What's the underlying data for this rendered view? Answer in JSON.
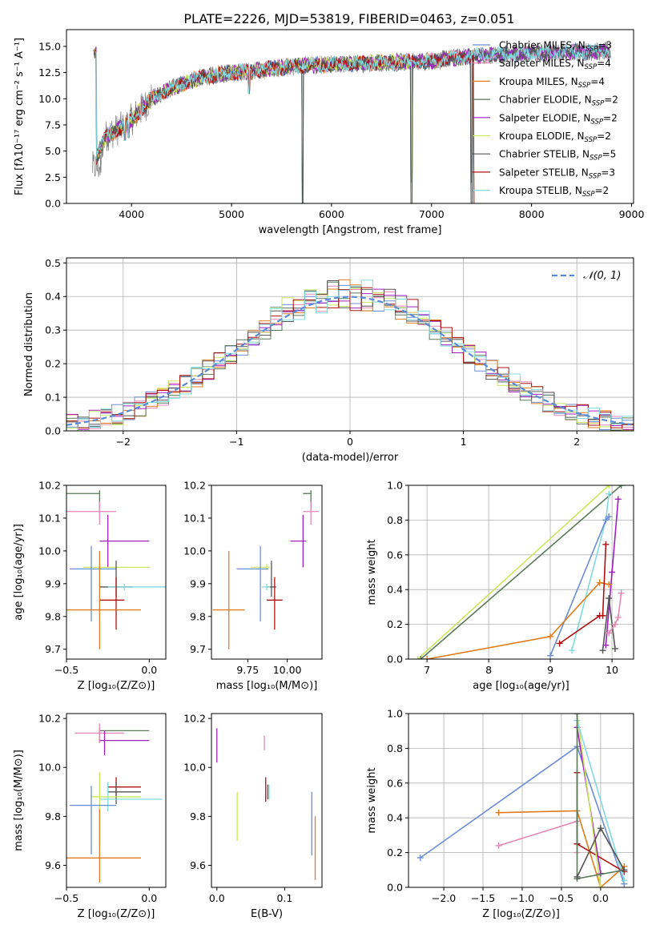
{
  "figure": {
    "title": "PLATE=2226, MJD=53819, FIBERID=0463, z=0.051"
  },
  "colors": {
    "chabrier_miles": "#6b8dd6",
    "salpeter_miles": "#e687b4",
    "kroupa_miles": "#e07b1c",
    "chabrier_elodie": "#5a7a5a",
    "salpeter_elodie": "#a020c0",
    "kroupa_elodie": "#c8e85a",
    "chabrier_stelib": "#555555",
    "salpeter_stelib": "#b01010",
    "kroupa_stelib": "#7fdbe0"
  },
  "chart_data": [
    {
      "id": "spectrum",
      "type": "line",
      "xlabel": "wavelength [Angstrom, rest frame]",
      "ylabel": "Flux [fλ10⁻¹⁷ erg cm⁻² s⁻¹ A⁻¹]",
      "xlim": [
        3350,
        9020
      ],
      "ylim": [
        0,
        16.6
      ],
      "xticks": [
        "4000",
        "5000",
        "6000",
        "7000",
        "8000",
        "9000"
      ],
      "yticks": [
        "0.0",
        "2.5",
        "5.0",
        "7.5",
        "10.0",
        "12.5",
        "15.0"
      ],
      "legend_position": "top-right",
      "legend": [
        {
          "label": "Chabrier MILES, N",
          "sub": "SSP",
          "suffix": "=3",
          "color": "#6b8dd6"
        },
        {
          "label": "Salpeter MILES, N",
          "sub": "SSP",
          "suffix": "=4",
          "color": "#e687b4"
        },
        {
          "label": "Kroupa MILES, N",
          "sub": "SSP",
          "suffix": "=4",
          "color": "#e07b1c"
        },
        {
          "label": "Chabrier ELODIE, N",
          "sub": "SSP",
          "suffix": "=2",
          "color": "#5a7a5a"
        },
        {
          "label": "Salpeter ELODIE, N",
          "sub": "SSP",
          "suffix": "=2",
          "color": "#a020c0"
        },
        {
          "label": "Kroupa ELODIE, N",
          "sub": "SSP",
          "suffix": "=2",
          "color": "#c8e85a"
        },
        {
          "label": "Chabrier STELIB, N",
          "sub": "SSP",
          "suffix": "=5",
          "color": "#555555"
        },
        {
          "label": "Salpeter STELIB, N",
          "sub": "SSP",
          "suffix": "=3",
          "color": "#b01010"
        },
        {
          "label": "Kroupa STELIB, N",
          "sub": "SSP",
          "suffix": "=2",
          "color": "#7fdbe0"
        }
      ],
      "continuum": [
        [
          3650,
          4.5
        ],
        [
          3750,
          6.5
        ],
        [
          3850,
          7.0
        ],
        [
          3950,
          7.5
        ],
        [
          4050,
          8.5
        ],
        [
          4200,
          10.0
        ],
        [
          4400,
          11.0
        ],
        [
          4600,
          11.8
        ],
        [
          4800,
          12.2
        ],
        [
          5000,
          12.5
        ],
        [
          5200,
          12.6
        ],
        [
          5500,
          13.0
        ],
        [
          5800,
          13.2
        ],
        [
          6100,
          13.3
        ],
        [
          6400,
          13.4
        ],
        [
          6700,
          13.5
        ],
        [
          7000,
          13.6
        ],
        [
          7300,
          14.0
        ],
        [
          7600,
          14.2
        ],
        [
          7900,
          14.3
        ],
        [
          8200,
          14.4
        ],
        [
          8500,
          14.5
        ],
        [
          8800,
          14.5
        ]
      ],
      "drops": [
        [
          3934,
          4.5
        ],
        [
          3969,
          4.8
        ],
        [
          4102,
          8.8
        ],
        [
          4300,
          9.0
        ],
        [
          4861,
          10.3
        ],
        [
          5175,
          9.0
        ],
        [
          5711,
          0
        ],
        [
          5893,
          11.0
        ],
        [
          6563,
          11.8
        ],
        [
          6800,
          0
        ],
        [
          7400,
          0
        ]
      ]
    },
    {
      "id": "residuals",
      "type": "histogram",
      "xlabel": "(data-model)/error",
      "ylabel": "Normed distribution",
      "xlim": [
        -2.5,
        2.5
      ],
      "ylim": [
        0,
        0.515
      ],
      "xticks": [
        "−2",
        "−1",
        "0",
        "1",
        "2"
      ],
      "yticks": [
        "0.0",
        "0.1",
        "0.2",
        "0.3",
        "0.4",
        "0.5"
      ],
      "grid": true,
      "reference_label": "𝒩(0, 1)",
      "reference_color": "#5b8bd8",
      "legend_position": "top-right"
    },
    {
      "id": "age_vs_Z",
      "type": "errorbar",
      "xlabel": "Z [log₁₀(Z/Z⊙)]",
      "ylabel": "age  [log₁₀(age/yr)]",
      "xlim": [
        -0.5,
        0.1
      ],
      "ylim": [
        9.67,
        10.2
      ],
      "xticks": [
        "−0.5",
        "0.0"
      ],
      "yticks": [
        "9.7",
        "9.8",
        "9.9",
        "10.0",
        "10.1",
        "10.2"
      ],
      "points": [
        {
          "x": -0.3,
          "y": 10.175,
          "xerr": [
            0.3,
            0.0
          ],
          "yerr": [
            0.05,
            0.01
          ],
          "color": "#5a7a5a"
        },
        {
          "x": -0.3,
          "y": 10.12,
          "xerr": [
            0.2,
            0.1
          ],
          "yerr": [
            0.04,
            0.03
          ],
          "color": "#e687b4"
        },
        {
          "x": -0.25,
          "y": 10.03,
          "xerr": [
            0.05,
            0.25
          ],
          "yerr": [
            0.08,
            0.08
          ],
          "color": "#a020c0"
        },
        {
          "x": -0.3,
          "y": 9.95,
          "xerr": [
            0.1,
            0.3
          ],
          "yerr": [
            0.01,
            0.01
          ],
          "color": "#c8e85a"
        },
        {
          "x": -0.35,
          "y": 9.945,
          "xerr": [
            0.13,
            0.15
          ],
          "yerr": [
            0.16,
            0.07
          ],
          "color": "#6b8dd6"
        },
        {
          "x": -0.2,
          "y": 9.89,
          "xerr": [
            0.1,
            0.1
          ],
          "yerr": [
            0.03,
            0.08
          ],
          "color": "#555555"
        },
        {
          "x": -0.15,
          "y": 9.89,
          "xerr": [
            0.1,
            0.27
          ],
          "yerr": [
            0.01,
            0.01
          ],
          "color": "#7fdbe0"
        },
        {
          "x": -0.2,
          "y": 9.85,
          "xerr": [
            0.1,
            0.05
          ],
          "yerr": [
            0.09,
            0.07
          ],
          "color": "#b01010"
        },
        {
          "x": -0.3,
          "y": 9.82,
          "xerr": [
            0.2,
            0.25
          ],
          "yerr": [
            0.12,
            0.18
          ],
          "color": "#e07b1c"
        }
      ]
    },
    {
      "id": "age_vs_mass",
      "type": "errorbar",
      "xlabel": "mass [log₁₀(M/M⊙)]",
      "ylabel": "",
      "xlim": [
        9.52,
        10.22
      ],
      "ylim": [
        9.67,
        10.2
      ],
      "xticks": [
        "9.75",
        "10.00"
      ],
      "yticks": [
        "9.7",
        "9.8",
        "9.9",
        "10.0",
        "10.1",
        "10.2"
      ],
      "points": [
        {
          "x": 10.15,
          "y": 10.175,
          "xerr": [
            0.05,
            0.0
          ],
          "yerr": [
            0.05,
            0.01
          ],
          "color": "#5a7a5a"
        },
        {
          "x": 10.15,
          "y": 10.12,
          "xerr": [
            0.05,
            0.05
          ],
          "yerr": [
            0.04,
            0.03
          ],
          "color": "#e687b4"
        },
        {
          "x": 10.1,
          "y": 10.03,
          "xerr": [
            0.08,
            0.02
          ],
          "yerr": [
            0.08,
            0.08
          ],
          "color": "#a020c0"
        },
        {
          "x": 9.87,
          "y": 9.95,
          "xerr": [
            0.1,
            0.02
          ],
          "yerr": [
            0.01,
            0.01
          ],
          "color": "#c8e85a"
        },
        {
          "x": 9.83,
          "y": 9.945,
          "xerr": [
            0.15,
            0.05
          ],
          "yerr": [
            0.16,
            0.07
          ],
          "color": "#6b8dd6"
        },
        {
          "x": 9.9,
          "y": 9.89,
          "xerr": [
            0.03,
            0.03
          ],
          "yerr": [
            0.03,
            0.08
          ],
          "color": "#555555"
        },
        {
          "x": 9.87,
          "y": 9.89,
          "xerr": [
            0.03,
            0.02
          ],
          "yerr": [
            0.01,
            0.01
          ],
          "color": "#7fdbe0"
        },
        {
          "x": 9.92,
          "y": 9.85,
          "xerr": [
            0.05,
            0.05
          ],
          "yerr": [
            0.09,
            0.07
          ],
          "color": "#b01010"
        },
        {
          "x": 9.63,
          "y": 9.82,
          "xerr": [
            0.1,
            0.1
          ],
          "yerr": [
            0.12,
            0.18
          ],
          "color": "#e07b1c"
        }
      ]
    },
    {
      "id": "weight_vs_age",
      "type": "line",
      "xlabel": "age  [log₁₀(age/yr)]",
      "ylabel": "mass weight",
      "xlim": [
        6.7,
        10.35
      ],
      "ylim": [
        0,
        1
      ],
      "xticks": [
        "7",
        "8",
        "9",
        "10"
      ],
      "yticks": [
        "0.0",
        "0.2",
        "0.4",
        "0.6",
        "0.8",
        "1.0"
      ],
      "grid": true,
      "series": [
        {
          "color": "#c8e85a",
          "x": [
            6.85,
            9.95
          ],
          "y": [
            0.0,
            1.0
          ]
        },
        {
          "color": "#5a7a5a",
          "x": [
            6.9,
            10.15
          ],
          "y": [
            0.0,
            1.0
          ]
        },
        {
          "color": "#7fdbe0",
          "x": [
            9.35,
            9.9,
            9.95
          ],
          "y": [
            0.05,
            0.8,
            0.95
          ]
        },
        {
          "color": "#6b8dd6",
          "x": [
            9.0,
            9.9,
            9.95
          ],
          "y": [
            0.02,
            0.8,
            0.82
          ]
        },
        {
          "color": "#a020c0",
          "x": [
            9.9,
            10.0,
            10.1
          ],
          "y": [
            0.08,
            0.5,
            0.92
          ]
        },
        {
          "color": "#e07b1c",
          "x": [
            7.0,
            9.0,
            9.8,
            9.95
          ],
          "y": [
            0.0,
            0.13,
            0.44,
            0.43
          ]
        },
        {
          "color": "#b01010",
          "x": [
            9.15,
            9.8,
            9.85,
            9.9
          ],
          "y": [
            0.09,
            0.25,
            0.25,
            0.66
          ]
        },
        {
          "color": "#555555",
          "x": [
            9.85,
            9.95,
            10.05
          ],
          "y": [
            0.05,
            0.35,
            0.06
          ]
        },
        {
          "color": "#e687b4",
          "x": [
            9.95,
            10.05,
            10.1,
            10.15
          ],
          "y": [
            0.15,
            0.2,
            0.24,
            0.38
          ]
        }
      ]
    },
    {
      "id": "mass_vs_Z",
      "type": "errorbar",
      "xlabel": "Z [log₁₀(Z/Z⊙)]",
      "ylabel": "mass [log₁₀(M/M⊙)]",
      "xlim": [
        -0.5,
        0.1
      ],
      "ylim": [
        9.51,
        10.22
      ],
      "xticks": [
        "−0.5",
        "0.0"
      ],
      "yticks": [
        "9.6",
        "9.8",
        "10.0",
        "10.2"
      ],
      "points": [
        {
          "x": -0.3,
          "y": 10.15,
          "xerr": [
            0.0,
            0.3
          ],
          "yerr": [
            0.05,
            0.01
          ],
          "color": "#5a7a5a"
        },
        {
          "x": -0.3,
          "y": 10.14,
          "xerr": [
            0.15,
            0.15
          ],
          "yerr": [
            0.04,
            0.04
          ],
          "color": "#e687b4"
        },
        {
          "x": -0.27,
          "y": 10.11,
          "xerr": [
            0.03,
            0.27
          ],
          "yerr": [
            0.06,
            0.04
          ],
          "color": "#a020c0"
        },
        {
          "x": -0.2,
          "y": 9.92,
          "xerr": [
            0.05,
            0.15
          ],
          "yerr": [
            0.05,
            0.04
          ],
          "color": "#b01010"
        },
        {
          "x": -0.2,
          "y": 9.9,
          "xerr": [
            0.05,
            0.15
          ],
          "yerr": [
            0.05,
            0.04
          ],
          "color": "#555555"
        },
        {
          "x": -0.25,
          "y": 9.87,
          "xerr": [
            0.05,
            0.33
          ],
          "yerr": [
            0.05,
            0.07
          ],
          "color": "#7fdbe0"
        },
        {
          "x": -0.3,
          "y": 9.88,
          "xerr": [
            0.05,
            0.25
          ],
          "yerr": [
            0.2,
            0.1
          ],
          "color": "#c8e85a"
        },
        {
          "x": -0.35,
          "y": 9.845,
          "xerr": [
            0.13,
            0.15
          ],
          "yerr": [
            0.2,
            0.08
          ],
          "color": "#6b8dd6"
        },
        {
          "x": -0.3,
          "y": 9.63,
          "xerr": [
            0.2,
            0.25
          ],
          "yerr": [
            0.1,
            0.2
          ],
          "color": "#e07b1c"
        }
      ]
    },
    {
      "id": "mass_vs_ebv",
      "type": "errorbar",
      "xlabel": "E(B-V)",
      "ylabel": "",
      "xlim": [
        -0.008,
        0.155
      ],
      "ylim": [
        9.51,
        10.22
      ],
      "xticks": [
        "0.0",
        "0.1"
      ],
      "yticks": [
        "9.6",
        "9.8",
        "10.0",
        "10.2"
      ],
      "points": [
        {
          "x": 0.0,
          "y": 10.09,
          "xerr": [
            0,
            0
          ],
          "yerr": [
            0.07,
            0.07
          ],
          "color": "#a020c0"
        },
        {
          "x": 0.07,
          "y": 10.1,
          "xerr": [
            0,
            0
          ],
          "yerr": [
            0.03,
            0.03
          ],
          "color": "#e687b4"
        },
        {
          "x": 0.03,
          "y": 9.8,
          "xerr": [
            0,
            0
          ],
          "yerr": [
            0.1,
            0.1
          ],
          "color": "#c8e85a"
        },
        {
          "x": 0.072,
          "y": 9.91,
          "xerr": [
            0,
            0
          ],
          "yerr": [
            0.05,
            0.05
          ],
          "color": "#b01010"
        },
        {
          "x": 0.075,
          "y": 9.9,
          "xerr": [
            0,
            0
          ],
          "yerr": [
            0.03,
            0.03
          ],
          "color": "#555555"
        },
        {
          "x": 0.077,
          "y": 9.9,
          "xerr": [
            0,
            0
          ],
          "yerr": [
            0.03,
            0.03
          ],
          "color": "#7fdbe0"
        },
        {
          "x": 0.14,
          "y": 9.77,
          "xerr": [
            0,
            0
          ],
          "yerr": [
            0.13,
            0.13
          ],
          "color": "#6b8dd6"
        },
        {
          "x": 0.145,
          "y": 9.67,
          "xerr": [
            0,
            0
          ],
          "yerr": [
            0.13,
            0.13
          ],
          "color": "#e07b1c"
        }
      ]
    },
    {
      "id": "weight_vs_Z",
      "type": "line",
      "xlabel": "Z [log₁₀(Z/Z⊙)]",
      "ylabel": "mass weight",
      "xlim": [
        -2.45,
        0.42
      ],
      "ylim": [
        0,
        1
      ],
      "xticks": [
        "−2.0",
        "−1.5",
        "−1.0",
        "−0.5",
        "0.0"
      ],
      "yticks": [
        "0.0",
        "0.2",
        "0.4",
        "0.6",
        "0.8",
        "1.0"
      ],
      "grid": true,
      "series": [
        {
          "color": "#6b8dd6",
          "x": [
            -2.3,
            -0.3,
            0.3
          ],
          "y": [
            0.17,
            0.81,
            0.02
          ]
        },
        {
          "color": "#e07b1c",
          "x": [
            -1.3,
            -0.3,
            0.0,
            0.3
          ],
          "y": [
            0.43,
            0.44,
            0.0,
            0.12
          ]
        },
        {
          "color": "#e687b4",
          "x": [
            -1.3,
            -0.3,
            -0.3
          ],
          "y": [
            0.24,
            0.38,
            0.2
          ]
        },
        {
          "color": "#b01010",
          "x": [
            -0.3,
            -0.3,
            0.3
          ],
          "y": [
            0.66,
            0.25,
            0.09
          ]
        },
        {
          "color": "#a020c0",
          "x": [
            -0.3,
            0.0
          ],
          "y": [
            0.92,
            0.08
          ]
        },
        {
          "color": "#c8e85a",
          "x": [
            -0.3,
            0.0
          ],
          "y": [
            1.0,
            0.0
          ]
        },
        {
          "color": "#7fdbe0",
          "x": [
            -0.3,
            0.3
          ],
          "y": [
            0.96,
            0.04
          ]
        },
        {
          "color": "#5a7a5a",
          "x": [
            -0.3,
            -0.3,
            0.3
          ],
          "y": [
            1.0,
            0.05,
            0.1
          ]
        },
        {
          "color": "#555555",
          "x": [
            -0.3,
            0.0,
            0.3
          ],
          "y": [
            0.06,
            0.34,
            0.1
          ]
        }
      ]
    }
  ]
}
